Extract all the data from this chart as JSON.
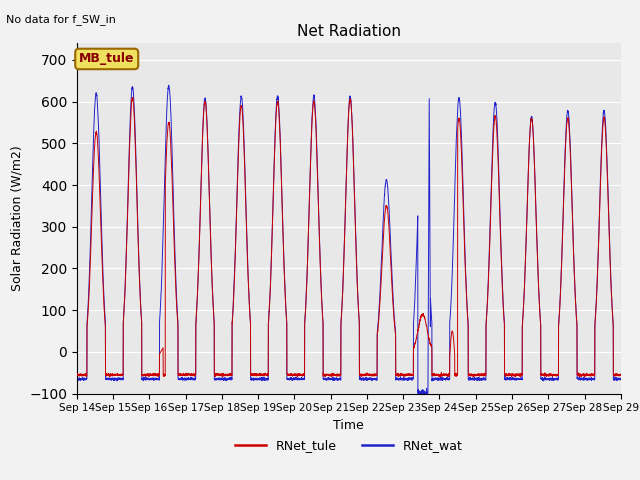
{
  "title": "Net Radiation",
  "xlabel": "Time",
  "ylabel": "Solar Radiation (W/m2)",
  "ylim": [
    -100,
    740
  ],
  "yticks": [
    -100,
    0,
    100,
    200,
    300,
    400,
    500,
    600,
    700
  ],
  "annotation_text": "No data for f_SW_in",
  "legend_box_label": "MB_tule",
  "legend_labels": [
    "RNet_tule",
    "RNet_wat"
  ],
  "line_colors": [
    "#cc0000",
    "#2222cc"
  ],
  "axes_facecolor": "#e8e8e8",
  "fig_facecolor": "#f2f2f2",
  "xtick_labels": [
    "Sep 14",
    "Sep 15",
    "Sep 16",
    "Sep 17",
    "Sep 18",
    "Sep 19",
    "Sep 20",
    "Sep 21",
    "Sep 22",
    "Sep 23",
    "Sep 24",
    "Sep 25",
    "Sep 26",
    "Sep 27",
    "Sep 28",
    "Sep 29"
  ],
  "num_days": 15,
  "points_per_day": 288,
  "nighttime_base_tule": -55,
  "nighttime_base_wat": -65,
  "day_peak_tule": [
    527,
    610,
    550,
    600,
    590,
    600,
    600,
    605,
    350,
    90,
    560,
    565,
    560,
    560,
    560
  ],
  "day_peak_wat": [
    620,
    635,
    638,
    608,
    612,
    613,
    613,
    612,
    412,
    612,
    608,
    598,
    563,
    578,
    578
  ],
  "sep23_wat_gap": true,
  "sep24_tule_spike": true
}
